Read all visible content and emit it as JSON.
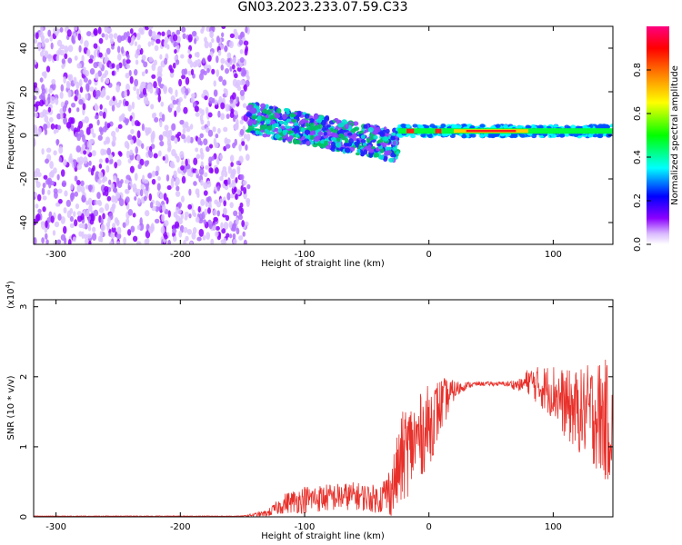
{
  "title": "GN03.2023.233.07.59.C33",
  "chart_data": [
    {
      "type": "heatmap",
      "xlabel": "Height of straight line (km)",
      "ylabel": "Frequency (Hz)",
      "xlim": [
        -318,
        148
      ],
      "ylim": [
        -50,
        50
      ],
      "xticks": [
        -300,
        -200,
        -100,
        0,
        100
      ],
      "yticks": [
        -40,
        -20,
        0,
        20,
        40
      ],
      "colorbar": {
        "label": "Normalized spectral amplitude",
        "range": [
          0,
          1
        ],
        "ticks": [
          0.0,
          0.2,
          0.4,
          0.6,
          0.8
        ],
        "colors": [
          "#ffffff",
          "#d9b8ff",
          "#8b00ff",
          "#0000ff",
          "#00ffff",
          "#00ff00",
          "#ffff00",
          "#ff8000",
          "#ff0000",
          "#ff0080"
        ]
      },
      "regions": [
        {
          "x_range": [
            -318,
            -145
          ],
          "f_range": [
            -50,
            50
          ],
          "amplitude": 0.1
        },
        {
          "x_range": [
            -145,
            -25
          ],
          "f_center_start": 8,
          "f_center_end": -5,
          "amplitude": 0.35
        },
        {
          "x_range": [
            -25,
            148
          ],
          "f_center": 2,
          "amplitude": 0.75
        }
      ]
    },
    {
      "type": "line",
      "xlabel": "Height of straight line (km)",
      "ylabel": "SNR (10 * v/v)",
      "y_multiplier": "(x10^4)",
      "xlim": [
        -318,
        148
      ],
      "ylim": [
        0,
        3.1
      ],
      "xticks": [
        -300,
        -200,
        -100,
        0,
        100
      ],
      "yticks": [
        0,
        1,
        2,
        3
      ],
      "series": [
        {
          "color": "#e8302a",
          "envelope": {
            "x": [
              -318,
              -150,
              -130,
              -115,
              -100,
              -60,
              -40,
              -30,
              -20,
              -10,
              0,
              10,
              20,
              30,
              40,
              60,
              75,
              80,
              90,
              100,
              110,
              120,
              130,
              140,
              148
            ],
            "y_mean": [
              0.01,
              0.01,
              0.05,
              0.2,
              0.25,
              0.3,
              0.25,
              0.4,
              0.9,
              1.1,
              1.3,
              1.6,
              1.8,
              1.88,
              1.9,
              1.9,
              1.88,
              1.95,
              1.85,
              1.8,
              1.6,
              1.5,
              1.5,
              1.4,
              1.3
            ],
            "y_spread": [
              0.005,
              0.005,
              0.05,
              0.15,
              0.2,
              0.2,
              0.2,
              0.4,
              0.7,
              0.6,
              0.6,
              0.4,
              0.15,
              0.05,
              0.03,
              0.03,
              0.1,
              0.2,
              0.3,
              0.4,
              0.5,
              0.6,
              0.7,
              0.9,
              0.8
            ]
          }
        }
      ]
    }
  ]
}
